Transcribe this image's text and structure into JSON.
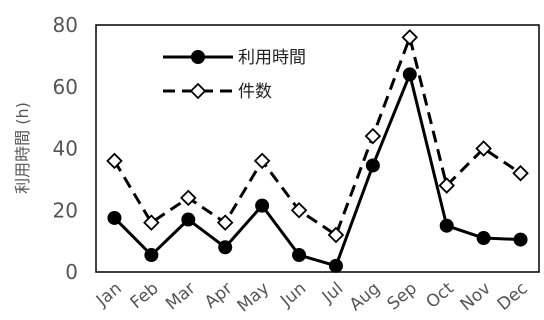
{
  "chart_data": {
    "type": "line",
    "ylabel": "利用時間 (h)",
    "ylim": [
      0,
      80
    ],
    "yticks": [
      0,
      20,
      40,
      60,
      80
    ],
    "categories": [
      "Jan",
      "Feb",
      "Mar",
      "Apr",
      "May",
      "Jun",
      "Jul",
      "Aug",
      "Sep",
      "Oct",
      "Nov",
      "Dec"
    ],
    "series": [
      {
        "name": "利用時間",
        "values": [
          17.5,
          5.5,
          17,
          8,
          21.5,
          5.5,
          2,
          34.5,
          64,
          15,
          11,
          10.5
        ],
        "style": "solid",
        "marker": "filled-circle",
        "color": "#000000"
      },
      {
        "name": "件数",
        "values": [
          36,
          16,
          24,
          16,
          36,
          20,
          12,
          44,
          76,
          28,
          40,
          32
        ],
        "style": "dashed",
        "marker": "open-diamond",
        "color": "#000000"
      }
    ],
    "legend_position": "top-left-inside",
    "grid": false
  }
}
